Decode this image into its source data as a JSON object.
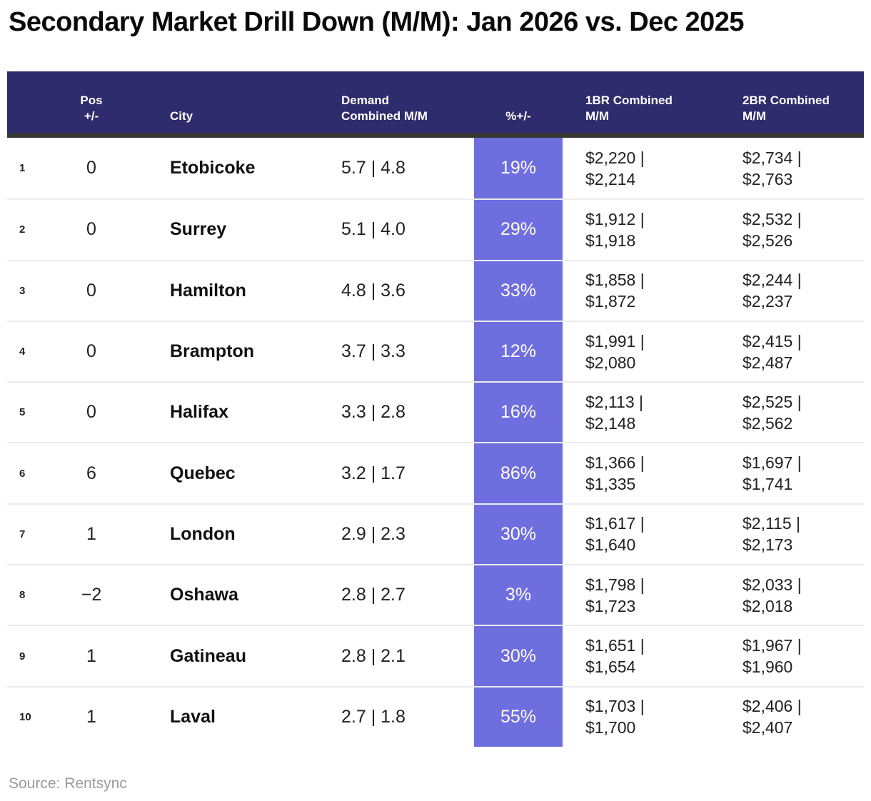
{
  "chart_data": {
    "type": "table",
    "title": "Secondary Market Drill Down (M/M): Jan 2026 vs. Dec 2025",
    "source": "Source: Rentsync",
    "header": {
      "rank": "",
      "pos_line1": "Pos",
      "pos_line2": "+/-",
      "city": "City",
      "demand_line1": "Demand",
      "demand_line2": "Combined M/M",
      "pct": "%+/-",
      "br1_line1": "1BR Combined",
      "br1_line2": "M/M",
      "br2_line1": "2BR Combined",
      "br2_line2": "M/M"
    },
    "rows": [
      {
        "rank": "1",
        "pos": "0",
        "city": "Etobicoke",
        "demand": "5.7 | 4.8",
        "pct": "19%",
        "br1_line1": "$2,220 |",
        "br1_line2": "$2,214",
        "br2_line1": "$2,734 |",
        "br2_line2": "$2,763"
      },
      {
        "rank": "2",
        "pos": "0",
        "city": "Surrey",
        "demand": "5.1 | 4.0",
        "pct": "29%",
        "br1_line1": "$1,912 |",
        "br1_line2": "$1,918",
        "br2_line1": "$2,532 |",
        "br2_line2": "$2,526"
      },
      {
        "rank": "3",
        "pos": "0",
        "city": "Hamilton",
        "demand": "4.8 | 3.6",
        "pct": "33%",
        "br1_line1": "$1,858 |",
        "br1_line2": "$1,872",
        "br2_line1": "$2,244 |",
        "br2_line2": "$2,237"
      },
      {
        "rank": "4",
        "pos": "0",
        "city": "Brampton",
        "demand": "3.7 | 3.3",
        "pct": "12%",
        "br1_line1": "$1,991 |",
        "br1_line2": "$2,080",
        "br2_line1": "$2,415 |",
        "br2_line2": "$2,487"
      },
      {
        "rank": "5",
        "pos": "0",
        "city": "Halifax",
        "demand": "3.3 | 2.8",
        "pct": "16%",
        "br1_line1": "$2,113 |",
        "br1_line2": "$2,148",
        "br2_line1": "$2,525 |",
        "br2_line2": "$2,562"
      },
      {
        "rank": "6",
        "pos": "6",
        "city": "Quebec",
        "demand": "3.2 | 1.7",
        "pct": "86%",
        "br1_line1": "$1,366 |",
        "br1_line2": "$1,335",
        "br2_line1": "$1,697 |",
        "br2_line2": "$1,741"
      },
      {
        "rank": "7",
        "pos": "1",
        "city": "London",
        "demand": "2.9 | 2.3",
        "pct": "30%",
        "br1_line1": "$1,617 |",
        "br1_line2": "$1,640",
        "br2_line1": "$2,115 |",
        "br2_line2": "$2,173"
      },
      {
        "rank": "8",
        "pos": "−2",
        "city": "Oshawa",
        "demand": "2.8 | 2.7",
        "pct": "3%",
        "br1_line1": "$1,798 |",
        "br1_line2": "$1,723",
        "br2_line1": "$2,033 |",
        "br2_line2": "$2,018"
      },
      {
        "rank": "9",
        "pos": "1",
        "city": "Gatineau",
        "demand": "2.8 | 2.1",
        "pct": "30%",
        "br1_line1": "$1,651 |",
        "br1_line2": "$1,654",
        "br2_line1": "$1,967 |",
        "br2_line2": "$1,960"
      },
      {
        "rank": "10",
        "pos": "1",
        "city": "Laval",
        "demand": "2.7 | 1.8",
        "pct": "55%",
        "br1_line1": "$1,703 |",
        "br1_line2": "$1,700",
        "br2_line1": "$2,406 |",
        "br2_line2": "$2,407"
      }
    ]
  },
  "colors": {
    "header_bg": "#2e2c6c",
    "accent": "#6f6ede",
    "strip": "#383838"
  }
}
